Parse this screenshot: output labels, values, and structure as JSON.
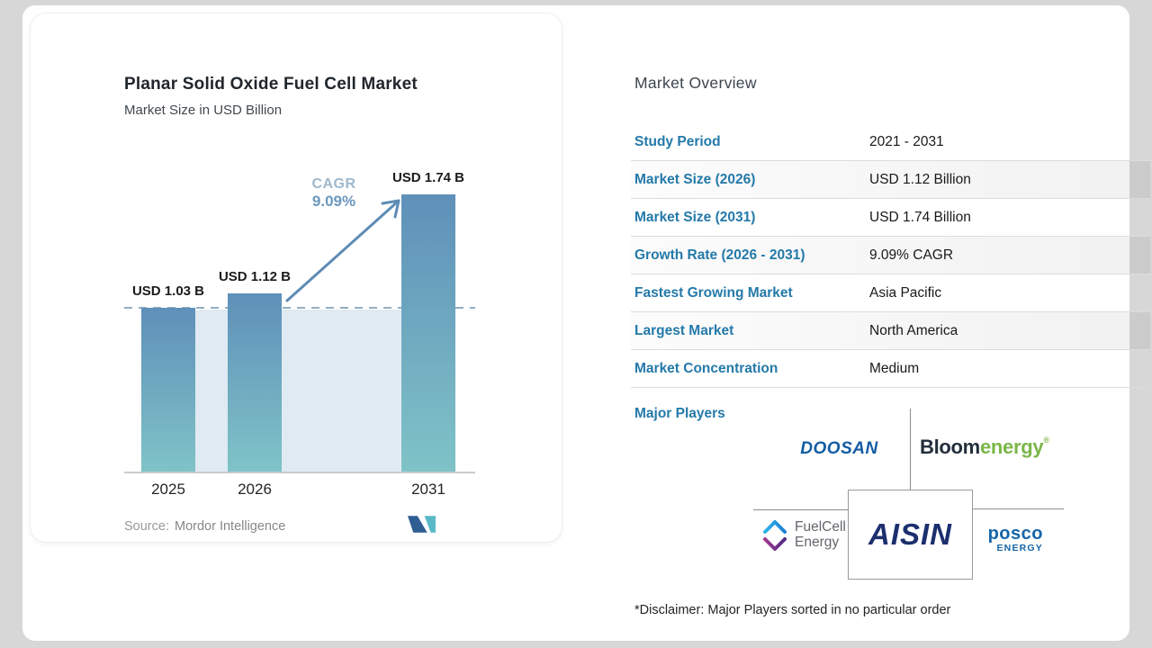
{
  "chart_card": {
    "title": "Planar Solid Oxide Fuel Cell Market",
    "subtitle": "Market Size in USD Billion",
    "source_label": "Source:",
    "source_name": "Mordor Intelligence"
  },
  "chart_data": {
    "type": "bar",
    "title": "Planar Solid Oxide Fuel Cell Market",
    "subtitle": "Market Size in USD Billion",
    "categories": [
      "2025",
      "2026",
      "2031"
    ],
    "values": [
      1.03,
      1.12,
      1.74
    ],
    "value_labels": [
      "USD 1.03 B",
      "USD 1.12 B",
      "USD 1.74 B"
    ],
    "unit": "USD Billion",
    "ylim": [
      0,
      1.9
    ],
    "grid": false,
    "cagr": {
      "label": "CAGR",
      "value": "9.09%"
    },
    "dashed_reference_value": 1.03,
    "annotations": [
      "Arrow from 2026 bar to 2031 bar indicating CAGR 9.09%",
      "Dashed horizontal reference line at 2025 level with light shaded band below"
    ]
  },
  "overview": {
    "heading": "Market Overview",
    "rows": [
      {
        "label": "Study Period",
        "value": "2021 - 2031"
      },
      {
        "label": "Market Size (2026)",
        "value": "USD 1.12 Billion"
      },
      {
        "label": "Market Size (2031)",
        "value": "USD 1.74 Billion"
      },
      {
        "label": "Growth Rate (2026 - 2031)",
        "value": "9.09% CAGR"
      },
      {
        "label": "Fastest Growing Market",
        "value": "Asia Pacific"
      },
      {
        "label": "Largest Market",
        "value": "North America"
      },
      {
        "label": "Market Concentration",
        "value": "Medium"
      }
    ],
    "major_players_label": "Major Players",
    "players": {
      "doosan": "DOOSAN",
      "bloom_part1": "Bloom",
      "bloom_part2": "energy",
      "bloom_reg": "®",
      "fuelcell_line1": "FuelCell",
      "fuelcell_line2": "Energy",
      "aisin": "AISIN",
      "posco_line1": "posco",
      "posco_line2": "ENERGY"
    },
    "disclaimer": "*Disclaimer: Major Players sorted in no particular order"
  },
  "colors": {
    "page_bg": "#d7d7d7",
    "label_blue": "#2479a9",
    "bar_top": "#5f90b9",
    "bar_bottom": "#7fc3c7",
    "band": "#dfeaf3",
    "dashed": "#93aec2",
    "arrow": "#5d8cb4",
    "cagr_light": "#9fb8cc",
    "cagr_value": "#6b97bd",
    "line_gray": "#8c8c8c",
    "doosan_blue": "#135ca4",
    "bloom_dark": "#222e3a",
    "bloom_green": "#7ab648",
    "fuelcell_gray": "#63676b",
    "fuelcell_cyan": "#2bb3e8",
    "fuelcell_blue": "#1d7fd4",
    "fuelcell_magenta": "#a0388f",
    "fuelcell_purple": "#512d85",
    "aisin_navy": "#1c2f6e",
    "posco_blue": "#1565a7",
    "mi_blue": "#2f5e93",
    "mi_teal": "#59b9c6"
  }
}
